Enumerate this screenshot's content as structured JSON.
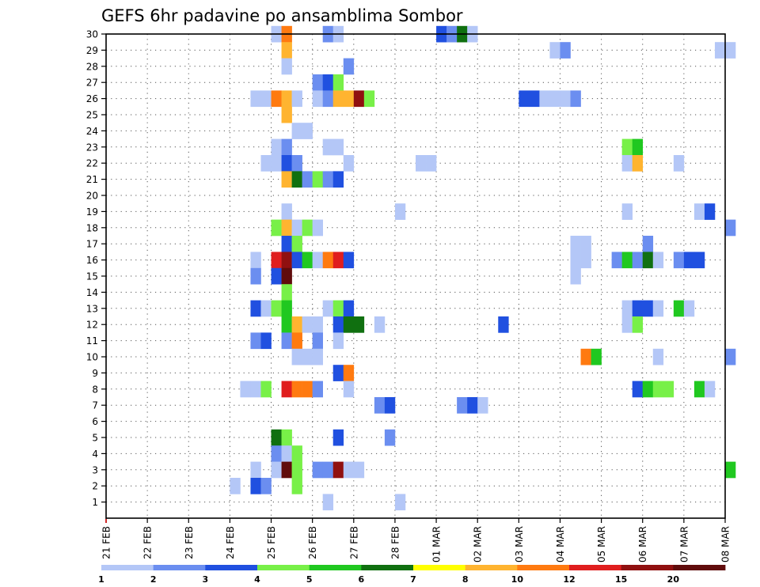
{
  "chart_data": {
    "type": "heatmap",
    "title": "GEFS 6hr padavine po ansamblima Sombor",
    "xlabel": "",
    "ylabel": "",
    "x_tick_labels": [
      "21 FEB",
      "22 FEB",
      "23 FEB",
      "24 FEB",
      "25 FEB",
      "26 FEB",
      "27 FEB",
      "28 FEB",
      "01 MAR",
      "02 MAR",
      "03 MAR",
      "04 MAR",
      "05 MAR",
      "06 MAR",
      "07 MAR",
      "08 MAR"
    ],
    "y_tick_labels": [
      "1",
      "2",
      "3",
      "4",
      "5",
      "6",
      "7",
      "8",
      "9",
      "10",
      "11",
      "12",
      "13",
      "14",
      "15",
      "16",
      "17",
      "18",
      "19",
      "20",
      "21",
      "22",
      "23",
      "24",
      "25",
      "26",
      "27",
      "28",
      "29",
      "30"
    ],
    "x_range_days": [
      0,
      15
    ],
    "y_range_members": [
      0,
      30
    ],
    "time_step_days": 0.25,
    "grid": "dotted",
    "colorbar": {
      "labels": [
        "1",
        "2",
        "3",
        "4",
        "5",
        "6",
        "7",
        "8",
        "10",
        "12",
        "15",
        "20"
      ],
      "colors": [
        "#b4c7f7",
        "#6b8ef0",
        "#2050e0",
        "#78f048",
        "#20c820",
        "#107010",
        "#ffff00",
        "#ffb430",
        "#ff7a10",
        "#e01e1e",
        "#901010",
        "#600c0c"
      ]
    },
    "cells": [
      [
        30,
        4.0,
        1
      ],
      [
        30,
        4.25,
        10
      ],
      [
        30,
        5.25,
        2
      ],
      [
        30,
        5.5,
        1
      ],
      [
        30,
        8.0,
        3
      ],
      [
        30,
        8.25,
        2
      ],
      [
        30,
        8.5,
        6
      ],
      [
        30,
        8.75,
        1
      ],
      [
        29,
        4.25,
        8
      ],
      [
        29,
        10.75,
        1
      ],
      [
        29,
        11.0,
        2
      ],
      [
        29,
        14.75,
        1
      ],
      [
        29,
        15.0,
        1
      ],
      [
        28,
        4.25,
        1
      ],
      [
        28,
        5.75,
        2
      ],
      [
        27,
        5.0,
        2
      ],
      [
        27,
        5.25,
        3
      ],
      [
        27,
        5.5,
        4
      ],
      [
        26,
        3.5,
        1
      ],
      [
        26,
        3.75,
        1
      ],
      [
        26,
        4.0,
        10
      ],
      [
        26,
        4.25,
        8
      ],
      [
        26,
        4.5,
        1
      ],
      [
        26,
        5.0,
        1
      ],
      [
        26,
        5.25,
        2
      ],
      [
        26,
        5.5,
        8
      ],
      [
        26,
        5.75,
        8
      ],
      [
        26,
        6.0,
        15
      ],
      [
        26,
        6.25,
        4
      ],
      [
        26,
        10.0,
        3
      ],
      [
        26,
        10.25,
        3
      ],
      [
        26,
        10.5,
        1
      ],
      [
        26,
        10.75,
        1
      ],
      [
        26,
        11.0,
        1
      ],
      [
        26,
        11.25,
        2
      ],
      [
        25,
        4.25,
        8
      ],
      [
        24,
        4.5,
        1
      ],
      [
        24,
        4.75,
        1
      ],
      [
        23,
        4.0,
        1
      ],
      [
        23,
        4.25,
        2
      ],
      [
        23,
        5.25,
        1
      ],
      [
        23,
        5.5,
        1
      ],
      [
        23,
        12.5,
        4
      ],
      [
        23,
        12.75,
        5
      ],
      [
        22,
        3.75,
        1
      ],
      [
        22,
        4.0,
        1
      ],
      [
        22,
        4.25,
        3
      ],
      [
        22,
        4.5,
        2
      ],
      [
        22,
        5.75,
        1
      ],
      [
        22,
        7.5,
        1
      ],
      [
        22,
        7.75,
        1
      ],
      [
        22,
        12.5,
        1
      ],
      [
        22,
        12.75,
        8
      ],
      [
        22,
        13.75,
        1
      ],
      [
        21,
        4.25,
        8
      ],
      [
        21,
        4.5,
        6
      ],
      [
        21,
        4.75,
        2
      ],
      [
        21,
        5.0,
        4
      ],
      [
        21,
        5.25,
        2
      ],
      [
        21,
        5.5,
        3
      ],
      [
        19,
        4.25,
        1
      ],
      [
        19,
        7.0,
        1
      ],
      [
        19,
        12.5,
        1
      ],
      [
        19,
        14.25,
        1
      ],
      [
        19,
        14.5,
        3
      ],
      [
        18,
        4.0,
        4
      ],
      [
        18,
        4.25,
        8
      ],
      [
        18,
        4.5,
        1
      ],
      [
        18,
        4.75,
        4
      ],
      [
        18,
        5.0,
        1
      ],
      [
        18,
        15.0,
        2
      ],
      [
        17,
        4.25,
        3
      ],
      [
        17,
        4.5,
        4
      ],
      [
        17,
        11.25,
        1
      ],
      [
        17,
        11.5,
        1
      ],
      [
        17,
        13.0,
        2
      ],
      [
        16,
        3.5,
        1
      ],
      [
        16,
        4.0,
        12
      ],
      [
        16,
        4.25,
        15
      ],
      [
        16,
        4.5,
        3
      ],
      [
        16,
        4.75,
        5
      ],
      [
        16,
        5.0,
        1
      ],
      [
        16,
        5.25,
        10
      ],
      [
        16,
        5.5,
        12
      ],
      [
        16,
        5.75,
        3
      ],
      [
        16,
        11.25,
        1
      ],
      [
        16,
        11.5,
        1
      ],
      [
        16,
        12.25,
        2
      ],
      [
        16,
        12.5,
        5
      ],
      [
        16,
        12.75,
        2
      ],
      [
        16,
        13.0,
        6
      ],
      [
        16,
        13.25,
        1
      ],
      [
        16,
        13.75,
        2
      ],
      [
        16,
        14.0,
        3
      ],
      [
        16,
        14.25,
        3
      ],
      [
        15,
        3.5,
        2
      ],
      [
        15,
        4.0,
        3
      ],
      [
        15,
        4.25,
        20
      ],
      [
        15,
        11.25,
        1
      ],
      [
        14,
        4.25,
        4
      ],
      [
        13,
        3.5,
        3
      ],
      [
        13,
        3.75,
        1
      ],
      [
        13,
        4.0,
        4
      ],
      [
        13,
        4.25,
        5
      ],
      [
        13,
        5.25,
        1
      ],
      [
        13,
        5.5,
        4
      ],
      [
        13,
        5.75,
        3
      ],
      [
        13,
        12.5,
        1
      ],
      [
        13,
        12.75,
        3
      ],
      [
        13,
        13.0,
        3
      ],
      [
        13,
        13.25,
        1
      ],
      [
        13,
        13.75,
        5
      ],
      [
        13,
        14.0,
        1
      ],
      [
        12,
        4.25,
        5
      ],
      [
        12,
        4.5,
        8
      ],
      [
        12,
        4.75,
        1
      ],
      [
        12,
        5.0,
        1
      ],
      [
        12,
        5.5,
        3
      ],
      [
        12,
        5.75,
        6
      ],
      [
        12,
        6.0,
        6
      ],
      [
        12,
        6.5,
        1
      ],
      [
        12,
        9.5,
        3
      ],
      [
        12,
        12.5,
        1
      ],
      [
        12,
        12.75,
        4
      ],
      [
        11,
        3.5,
        2
      ],
      [
        11,
        3.75,
        3
      ],
      [
        11,
        4.25,
        2
      ],
      [
        11,
        4.5,
        10
      ],
      [
        11,
        5.0,
        2
      ],
      [
        11,
        5.5,
        1
      ],
      [
        10,
        4.5,
        1
      ],
      [
        10,
        4.75,
        1
      ],
      [
        10,
        5.0,
        1
      ],
      [
        10,
        11.5,
        10
      ],
      [
        10,
        11.75,
        5
      ],
      [
        10,
        13.25,
        1
      ],
      [
        10,
        15.0,
        2
      ],
      [
        9,
        5.5,
        3
      ],
      [
        9,
        5.75,
        10
      ],
      [
        8,
        3.25,
        1
      ],
      [
        8,
        3.5,
        1
      ],
      [
        8,
        3.75,
        4
      ],
      [
        8,
        4.25,
        12
      ],
      [
        8,
        4.5,
        10
      ],
      [
        8,
        4.75,
        10
      ],
      [
        8,
        5.0,
        2
      ],
      [
        8,
        5.75,
        1
      ],
      [
        8,
        12.75,
        3
      ],
      [
        8,
        13.0,
        5
      ],
      [
        8,
        13.25,
        4
      ],
      [
        8,
        13.5,
        4
      ],
      [
        8,
        14.25,
        5
      ],
      [
        8,
        14.5,
        1
      ],
      [
        7,
        6.5,
        2
      ],
      [
        7,
        6.75,
        3
      ],
      [
        7,
        8.5,
        2
      ],
      [
        7,
        8.75,
        3
      ],
      [
        7,
        9.0,
        1
      ],
      [
        5,
        4.0,
        6
      ],
      [
        5,
        4.25,
        4
      ],
      [
        5,
        5.5,
        3
      ],
      [
        5,
        6.75,
        2
      ],
      [
        4,
        4.0,
        2
      ],
      [
        4,
        4.25,
        1
      ],
      [
        4,
        4.5,
        4
      ],
      [
        3,
        3.5,
        1
      ],
      [
        3,
        4.0,
        1
      ],
      [
        3,
        4.25,
        20
      ],
      [
        3,
        4.5,
        4
      ],
      [
        3,
        5.0,
        2
      ],
      [
        3,
        5.25,
        2
      ],
      [
        3,
        5.5,
        15
      ],
      [
        3,
        5.75,
        1
      ],
      [
        3,
        6.0,
        1
      ],
      [
        3,
        15.0,
        5
      ],
      [
        2,
        3.0,
        1
      ],
      [
        2,
        3.5,
        3
      ],
      [
        2,
        3.75,
        2
      ],
      [
        2,
        4.5,
        4
      ],
      [
        1,
        5.25,
        1
      ],
      [
        1,
        7.0,
        1
      ]
    ]
  }
}
